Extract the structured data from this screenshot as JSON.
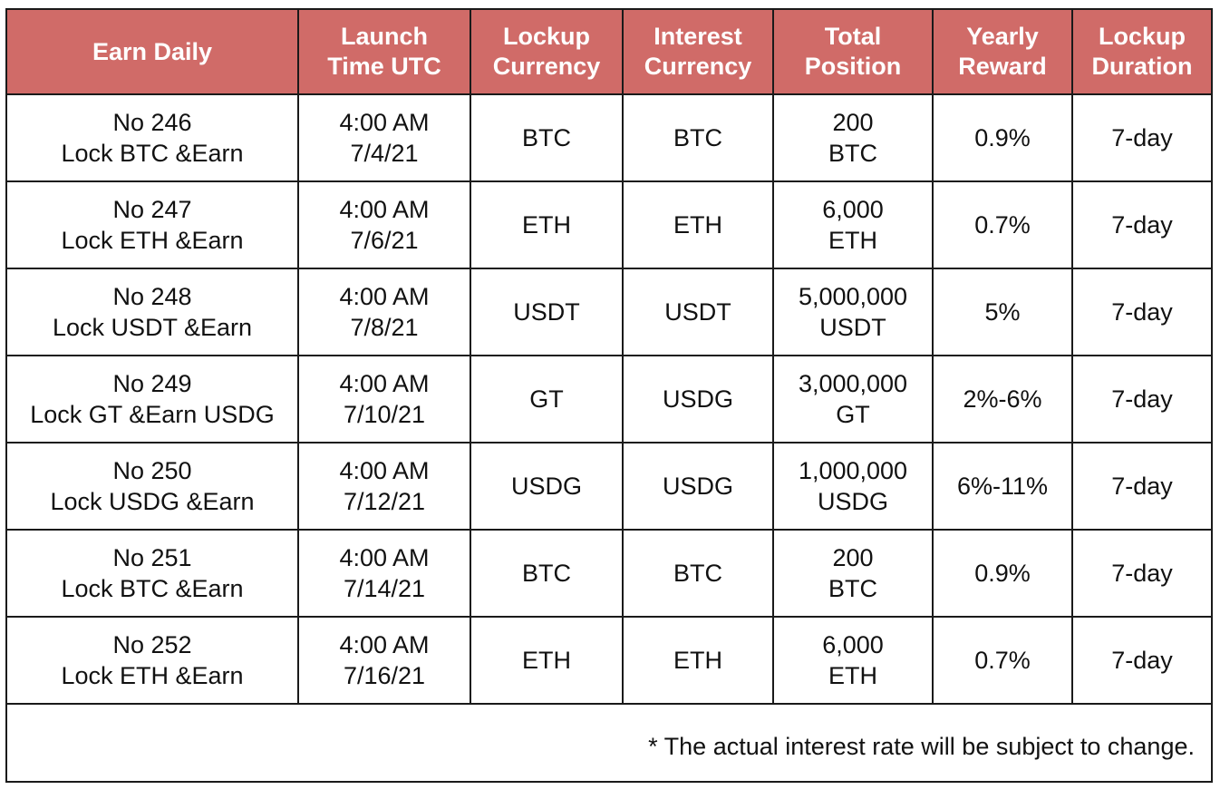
{
  "headers": [
    {
      "line1": "Earn Daily",
      "line2": ""
    },
    {
      "line1": "Launch",
      "line2": "Time UTC"
    },
    {
      "line1": "Lockup",
      "line2": "Currency"
    },
    {
      "line1": "Interest",
      "line2": "Currency"
    },
    {
      "line1": "Total",
      "line2": "Position"
    },
    {
      "line1": "Yearly",
      "line2": "Reward"
    },
    {
      "line1": "Lockup",
      "line2": "Duration"
    }
  ],
  "rows": [
    {
      "name_line1": "No 246",
      "name_line2": "Lock BTC &Earn",
      "time_line1": "4:00 AM",
      "time_line2": "7/4/21",
      "lockup_currency": "BTC",
      "interest_currency": "BTC",
      "position_amount": "200",
      "position_currency": "BTC",
      "yearly_reward": "0.9%",
      "duration": "7-day"
    },
    {
      "name_line1": "No 247",
      "name_line2": "Lock ETH &Earn",
      "time_line1": "4:00 AM",
      "time_line2": "7/6/21",
      "lockup_currency": "ETH",
      "interest_currency": "ETH",
      "position_amount": "6,000",
      "position_currency": "ETH",
      "yearly_reward": "0.7%",
      "duration": "7-day"
    },
    {
      "name_line1": "No 248",
      "name_line2": "Lock USDT &Earn",
      "time_line1": "4:00 AM",
      "time_line2": "7/8/21",
      "lockup_currency": "USDT",
      "interest_currency": "USDT",
      "position_amount": "5,000,000",
      "position_currency": "USDT",
      "yearly_reward": "5%",
      "duration": "7-day"
    },
    {
      "name_line1": "No 249",
      "name_line2": "Lock GT &Earn USDG",
      "time_line1": "4:00 AM",
      "time_line2": "7/10/21",
      "lockup_currency": "GT",
      "interest_currency": "USDG",
      "position_amount": "3,000,000",
      "position_currency": "GT",
      "yearly_reward": "2%-6%",
      "duration": "7-day"
    },
    {
      "name_line1": "No 250",
      "name_line2": "Lock USDG &Earn",
      "time_line1": "4:00 AM",
      "time_line2": "7/12/21",
      "lockup_currency": "USDG",
      "interest_currency": "USDG",
      "position_amount": "1,000,000",
      "position_currency": "USDG",
      "yearly_reward": "6%-11%",
      "duration": "7-day"
    },
    {
      "name_line1": "No 251",
      "name_line2": "Lock BTC &Earn",
      "time_line1": "4:00 AM",
      "time_line2": "7/14/21",
      "lockup_currency": "BTC",
      "interest_currency": "BTC",
      "position_amount": "200",
      "position_currency": "BTC",
      "yearly_reward": "0.9%",
      "duration": "7-day"
    },
    {
      "name_line1": "No 252",
      "name_line2": "Lock ETH &Earn",
      "time_line1": "4:00 AM",
      "time_line2": "7/16/21",
      "lockup_currency": "ETH",
      "interest_currency": "ETH",
      "position_amount": "6,000",
      "position_currency": "ETH",
      "yearly_reward": "0.7%",
      "duration": "7-day"
    }
  ],
  "footnote": "* The actual interest rate will be subject to change.",
  "colors": {
    "header_bg": "#d06b68",
    "header_text": "#ffffff",
    "border": "#1a1a1a"
  }
}
